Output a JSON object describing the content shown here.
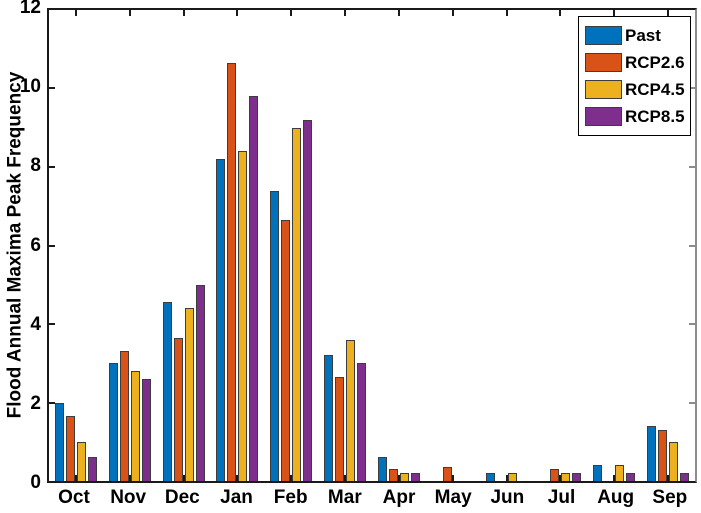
{
  "chart_data": {
    "type": "bar",
    "title": "",
    "xlabel": "",
    "ylabel": "Flood Annual Maxima Peak Frequency",
    "categories": [
      "Oct",
      "Nov",
      "Dec",
      "Jan",
      "Feb",
      "Mar",
      "Apr",
      "May",
      "Jun",
      "Jul",
      "Aug",
      "Sep"
    ],
    "y_ticks": [
      0,
      2,
      4,
      6,
      8,
      10,
      12
    ],
    "ylim": [
      0,
      12
    ],
    "grid": false,
    "legend_position": "top-right-inside",
    "bar_edge_color": "#3d3d3d",
    "series": [
      {
        "name": "Past",
        "color": "#0072BD",
        "values": [
          2.0,
          3.0,
          4.55,
          8.2,
          7.4,
          3.2,
          0.6,
          0,
          0.2,
          0,
          0.4,
          1.4
        ]
      },
      {
        "name": "RCP2.6",
        "color": "#D95319",
        "values": [
          1.65,
          3.3,
          3.65,
          10.65,
          6.65,
          2.65,
          0.3,
          0.35,
          0,
          0.3,
          0,
          1.3
        ]
      },
      {
        "name": "RCP4.5",
        "color": "#EDB120",
        "values": [
          1.0,
          2.8,
          4.4,
          8.4,
          9.0,
          3.6,
          0.2,
          0,
          0.2,
          0.2,
          0.4,
          1.0
        ]
      },
      {
        "name": "RCP8.5",
        "color": "#7E2F8E",
        "values": [
          0.6,
          2.6,
          5.0,
          9.8,
          9.2,
          3.0,
          0.2,
          0,
          0,
          0.2,
          0.2,
          0.2
        ]
      }
    ]
  }
}
